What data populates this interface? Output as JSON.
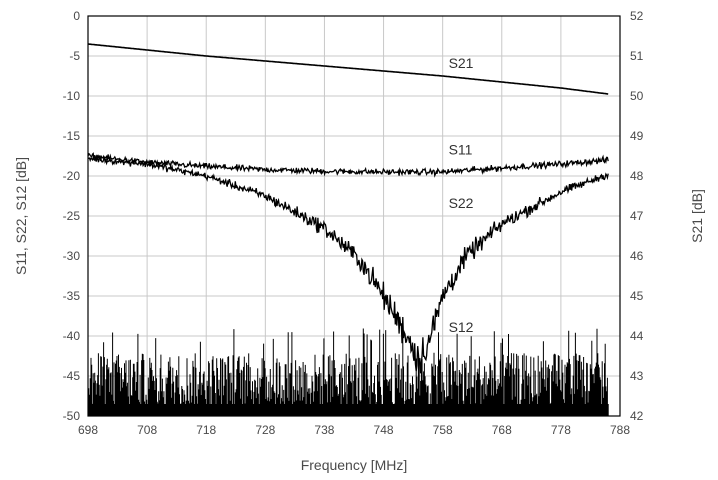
{
  "chart_data": {
    "type": "line",
    "title": "",
    "xlabel": "Frequency [MHz]",
    "ylabel_left": "S11, S22, S12 [dB]",
    "ylabel_right": "S21 [dB]",
    "xlim": [
      698,
      788
    ],
    "ylim_left": [
      -50,
      0
    ],
    "ylim_right": [
      42,
      52
    ],
    "x_ticks": [
      "698",
      "708",
      "718",
      "728",
      "738",
      "748",
      "758",
      "768",
      "778",
      "788"
    ],
    "y_ticks_left": [
      "0",
      "-5",
      "-10",
      "-15",
      "-20",
      "-25",
      "-30",
      "-35",
      "-40",
      "-45",
      "-50"
    ],
    "y_ticks_right": [
      "52",
      "51",
      "50",
      "49",
      "48",
      "47",
      "46",
      "45",
      "44",
      "43",
      "42"
    ],
    "grid": true,
    "series": [
      {
        "name": "S21",
        "axis": "right",
        "x": [
          698,
          718,
          738,
          758,
          778,
          786
        ],
        "values": [
          51.3,
          51.0,
          50.75,
          50.5,
          50.2,
          50.05
        ]
      },
      {
        "name": "S11",
        "axis": "left",
        "x": [
          698,
          708,
          718,
          728,
          738,
          748,
          758,
          768,
          778,
          786
        ],
        "values": [
          -17.5,
          -18.3,
          -18.8,
          -19.2,
          -19.4,
          -19.5,
          -19.5,
          -19.0,
          -18.5,
          -18.0
        ]
      },
      {
        "name": "S22",
        "axis": "left",
        "x": [
          698,
          708,
          718,
          728,
          738,
          744,
          748,
          752,
          754,
          756,
          758,
          762,
          768,
          778,
          786
        ],
        "values": [
          -17.8,
          -18.5,
          -20.0,
          -22.5,
          -26.5,
          -30.5,
          -35.0,
          -40.0,
          -43.0,
          -40.0,
          -35.0,
          -30.0,
          -26.0,
          -22.0,
          -19.8
        ]
      },
      {
        "name": "S12",
        "axis": "left",
        "x": [
          698,
          786
        ],
        "values": [
          -47,
          -47
        ],
        "noise_range": [
          -50,
          -39
        ]
      }
    ],
    "annotations": [
      {
        "text": "S21",
        "x": 759,
        "y_left": -6.5
      },
      {
        "text": "S11",
        "x": 759,
        "y_left": -17.3
      },
      {
        "text": "S22",
        "x": 759,
        "y_left": -24.0
      },
      {
        "text": "S12",
        "x": 759,
        "y_left": -39.5
      }
    ]
  }
}
